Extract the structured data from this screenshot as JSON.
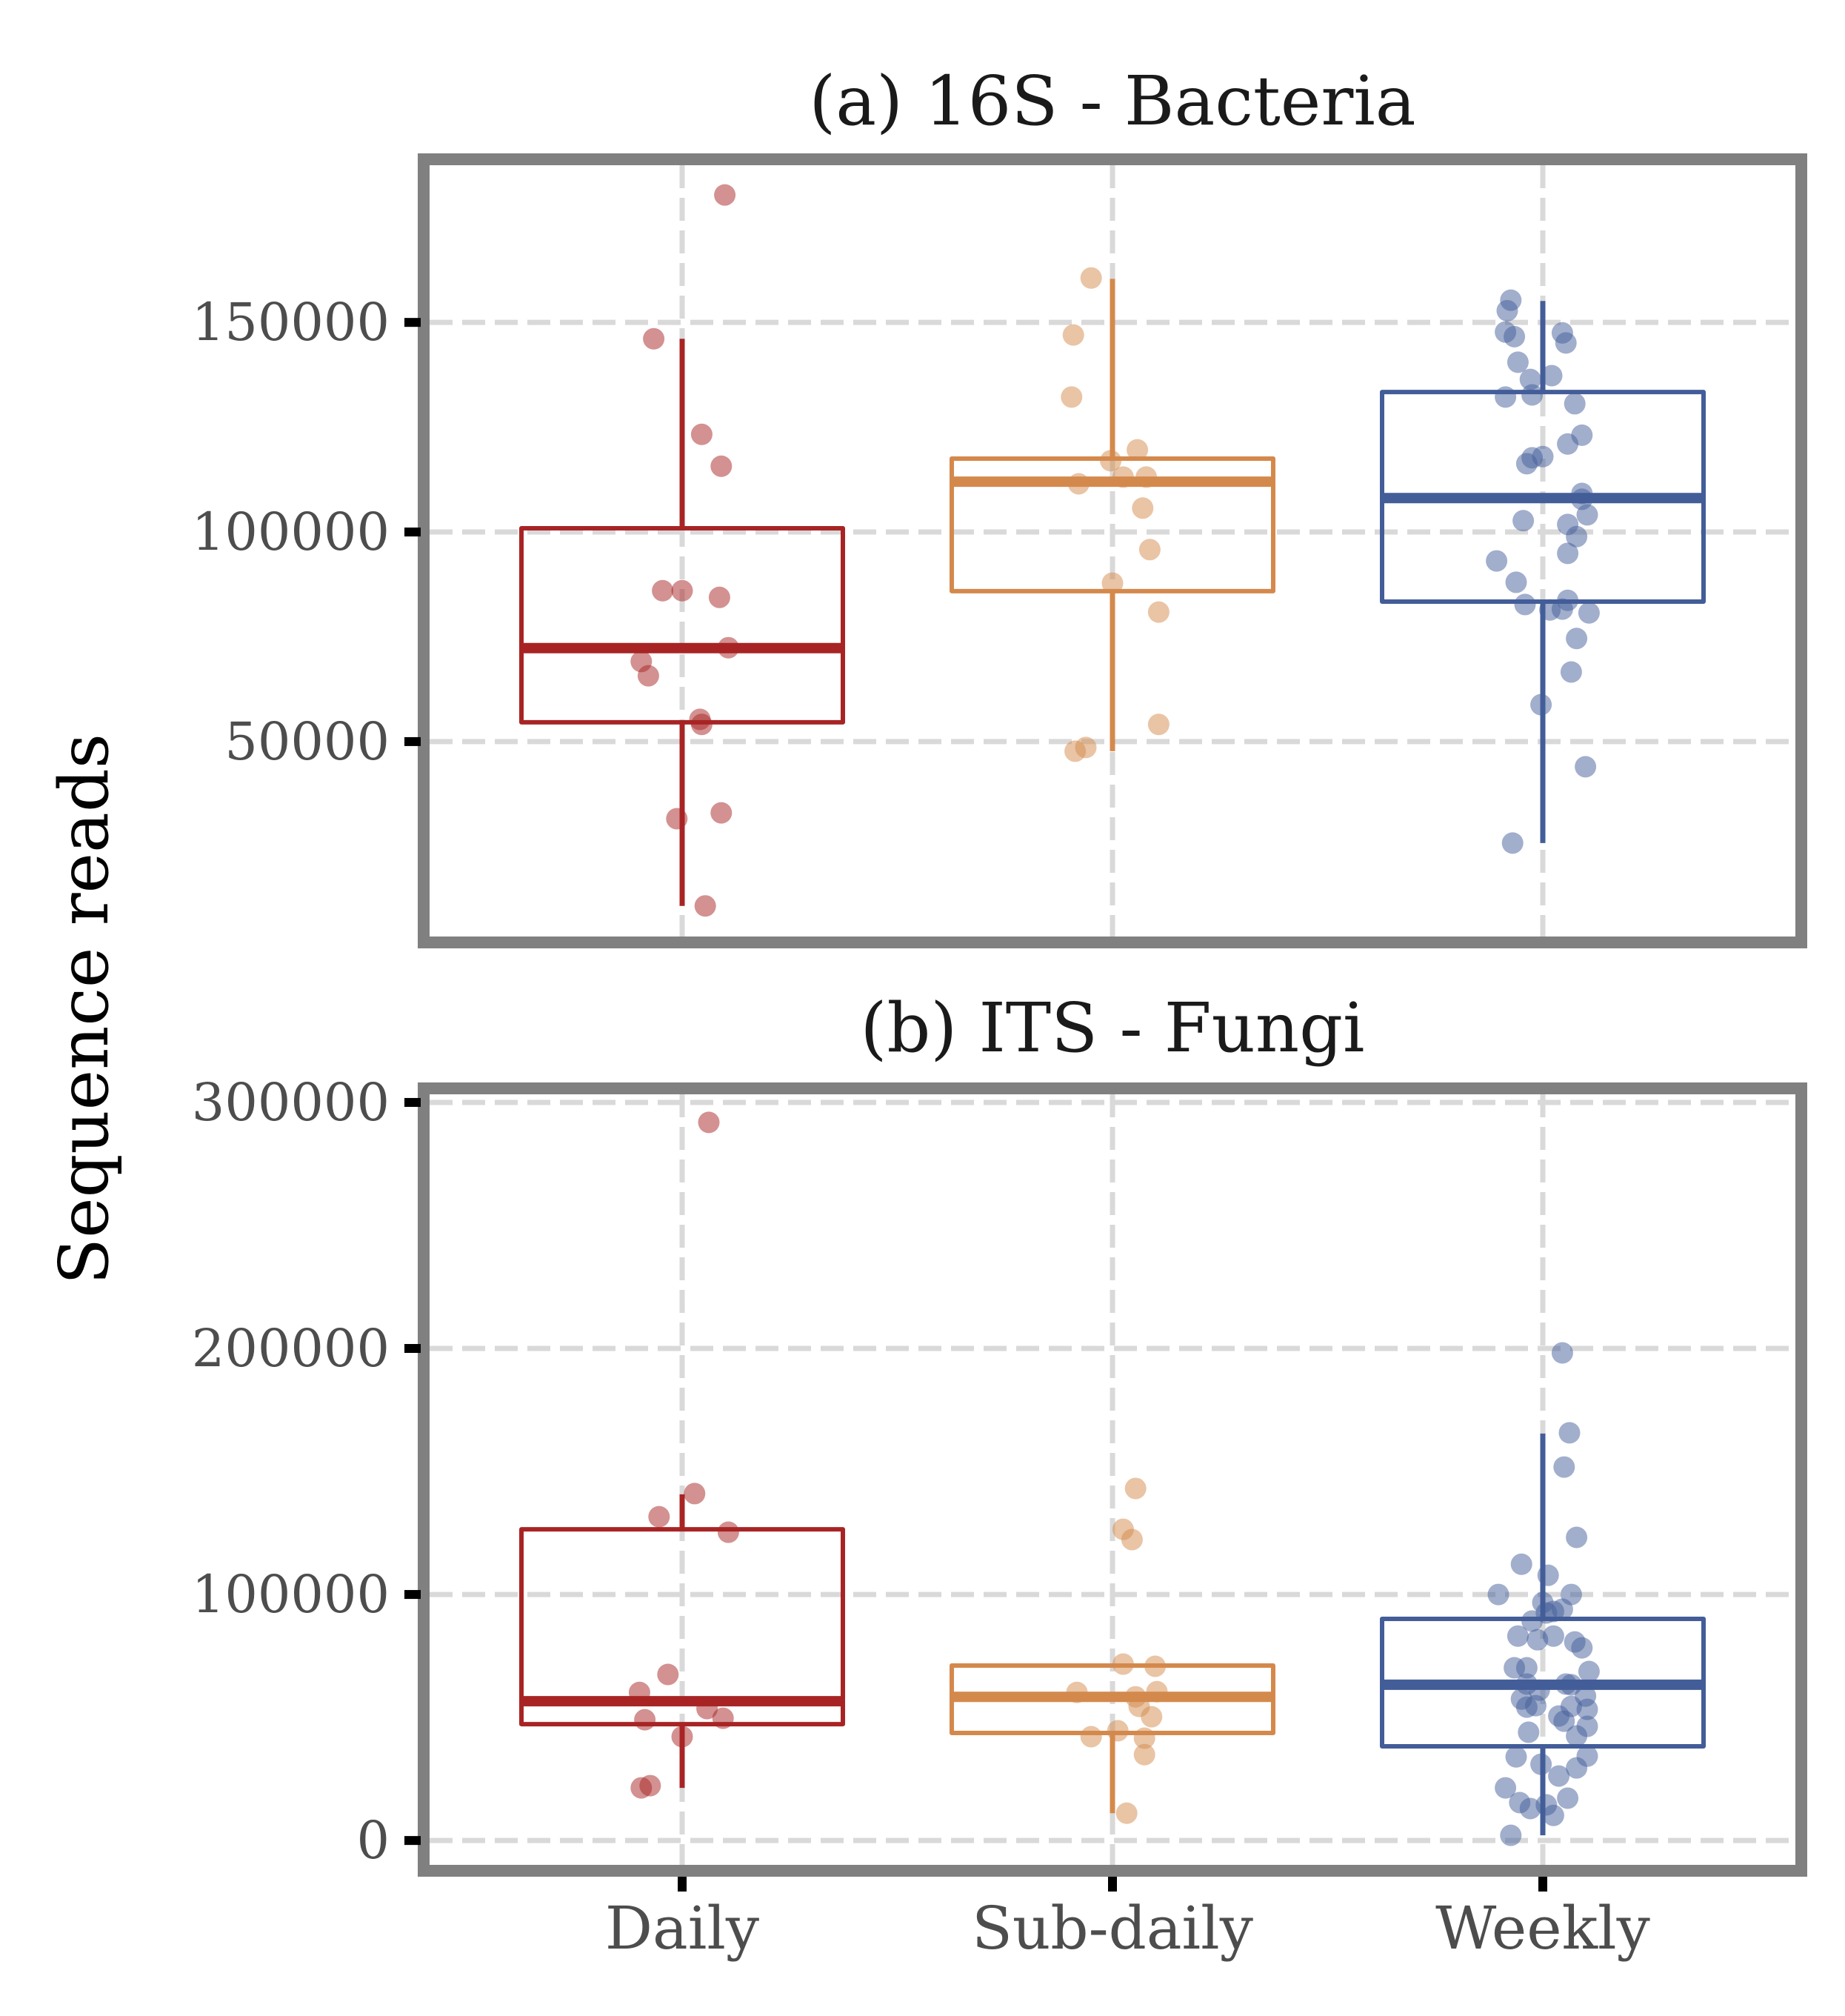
{
  "chart_data": {
    "type": "boxplot",
    "ylabel": "Sequence reads",
    "categories": [
      "Daily",
      "Sub-daily",
      "Weekly"
    ],
    "colors": {
      "Daily": "#a82424",
      "Sub-daily": "#d4894c",
      "Weekly": "#435d99"
    },
    "grid": true,
    "grid_style": "dashed",
    "frame_color": "#808080",
    "grid_color": "#d9d9d9",
    "panels": [
      {
        "title": "(a) 16S - Bacteria",
        "ylim": [
          3500,
          187500
        ],
        "yticks": [
          50000,
          100000,
          150000
        ],
        "ytick_labels": [
          "50000",
          "100000",
          "150000"
        ],
        "boxes": [
          {
            "category": "Daily",
            "whisker_low": 10800,
            "q1": 54600,
            "median": 72300,
            "q3": 100900,
            "whisker_high": 146100,
            "points": [
              180400,
              146100,
              123300,
              115700,
              86000,
              86000,
              84400,
              72400,
              69100,
              65700,
              55300,
              54100,
              33000,
              31600,
              10800
            ],
            "jitter": [
              0.24,
              -0.16,
              0.11,
              0.22,
              -0.11,
              0.0,
              0.21,
              0.26,
              -0.23,
              -0.19,
              0.1,
              0.11,
              0.22,
              -0.03,
              0.13
            ]
          },
          {
            "category": "Sub-daily",
            "whisker_low": 47700,
            "q1": 85900,
            "median": 112000,
            "q3": 117500,
            "whisker_high": 160400,
            "points": [
              160600,
              147000,
              132200,
              119600,
              117000,
              113100,
              113100,
              111500,
              105700,
              95800,
              87800,
              80900,
              54100,
              48600,
              47700
            ],
            "jitter": [
              -0.12,
              -0.22,
              -0.23,
              0.14,
              -0.01,
              0.06,
              0.19,
              -0.19,
              0.17,
              0.21,
              0.0,
              0.26,
              0.26,
              -0.15,
              -0.21
            ]
          },
          {
            "category": "Weekly",
            "whisker_low": 25800,
            "q1": 83400,
            "median": 108100,
            "q3": 133400,
            "whisker_high": 155100,
            "points": [
              155300,
              152800,
              147700,
              146600,
              147500,
              145100,
              140500,
              137300,
              136400,
              132200,
              132700,
              130600,
              123100,
              121000,
              118000,
              117700,
              116300,
              109200,
              107800,
              104100,
              102700,
              101800,
              98900,
              94900,
              93100,
              88000,
              83700,
              82700,
              81600,
              81400,
              80700,
              74600,
              66600,
              58800,
              44000,
              25800
            ],
            "jitter": [
              -0.18,
              -0.2,
              -0.21,
              -0.16,
              0.11,
              0.13,
              -0.14,
              0.05,
              -0.07,
              -0.21,
              -0.06,
              0.18,
              0.22,
              0.14,
              0.0,
              -0.06,
              -0.09,
              0.22,
              0.22,
              0.25,
              -0.11,
              0.14,
              0.19,
              0.14,
              -0.26,
              -0.15,
              0.14,
              -0.1,
              0.11,
              0.04,
              0.26,
              0.19,
              0.16,
              -0.01,
              0.24,
              -0.17
            ]
          }
        ]
      },
      {
        "title": "(b) ITS - Fungi",
        "ylim": [
          -9900,
          303300
        ],
        "yticks": [
          0,
          100000,
          200000,
          300000
        ],
        "ytick_labels": [
          "0",
          "100000",
          "200000",
          "300000"
        ],
        "boxes": [
          {
            "category": "Daily",
            "whisker_low": 21400,
            "q1": 47300,
            "median": 56600,
            "q3": 126500,
            "whisker_high": 140700,
            "points": [
              291900,
              141000,
              131600,
              125300,
              67500,
              60200,
              53600,
              49700,
              49100,
              42200,
              22300,
              21400
            ],
            "jitter": [
              0.15,
              0.07,
              -0.13,
              0.26,
              -0.08,
              -0.24,
              0.14,
              0.23,
              -0.21,
              0.0,
              -0.18,
              -0.23
            ]
          },
          {
            "category": "Sub-daily",
            "whisker_low": 11100,
            "q1": 43700,
            "median": 58400,
            "q3": 71100,
            "whisker_high": 71100,
            "points": [
              143100,
              126500,
              122300,
              71700,
              70800,
              60500,
              60200,
              58400,
              54500,
              50300,
              44600,
              42200,
              41600,
              34900,
              11100
            ],
            "jitter": [
              0.13,
              0.06,
              0.11,
              0.06,
              0.24,
              0.25,
              -0.2,
              0.13,
              0.15,
              0.22,
              0.03,
              -0.12,
              0.18,
              0.18,
              0.08
            ]
          },
          {
            "category": "Weekly",
            "whisker_low": 2100,
            "q1": 38300,
            "median": 63300,
            "q3": 90100,
            "whisker_high": 165400,
            "points": [
              198200,
              165700,
              151800,
              123200,
              112300,
              107800,
              100000,
              100000,
              96700,
              94000,
              93100,
              92500,
              89200,
              83100,
              83100,
              81600,
              80700,
              78300,
              70200,
              70200,
              68700,
              63600,
              63600,
              63300,
              61100,
              58700,
              57500,
              54800,
              54500,
              54200,
              53300,
              50600,
              48500,
              46400,
              44000,
              42500,
              34300,
              34000,
              31000,
              29500,
              26200,
              21400,
              17200,
              15400,
              14500,
              13000,
              10200,
              2100
            ],
            "jitter": [
              0.11,
              0.15,
              0.12,
              0.19,
              -0.12,
              0.03,
              -0.25,
              0.16,
              0.0,
              0.11,
              0.06,
              0.02,
              -0.06,
              -0.14,
              0.06,
              -0.03,
              0.18,
              0.22,
              -0.16,
              -0.09,
              0.26,
              -0.09,
              0.13,
              0.16,
              -0.02,
              0.24,
              -0.12,
              -0.04,
              0.16,
              -0.09,
              0.25,
              0.09,
              0.12,
              0.25,
              -0.08,
              0.19,
              0.25,
              -0.15,
              -0.01,
              0.19,
              0.09,
              -0.21,
              0.14,
              -0.13,
              0.02,
              -0.07,
              0.06,
              -0.18
            ]
          }
        ]
      }
    ]
  }
}
